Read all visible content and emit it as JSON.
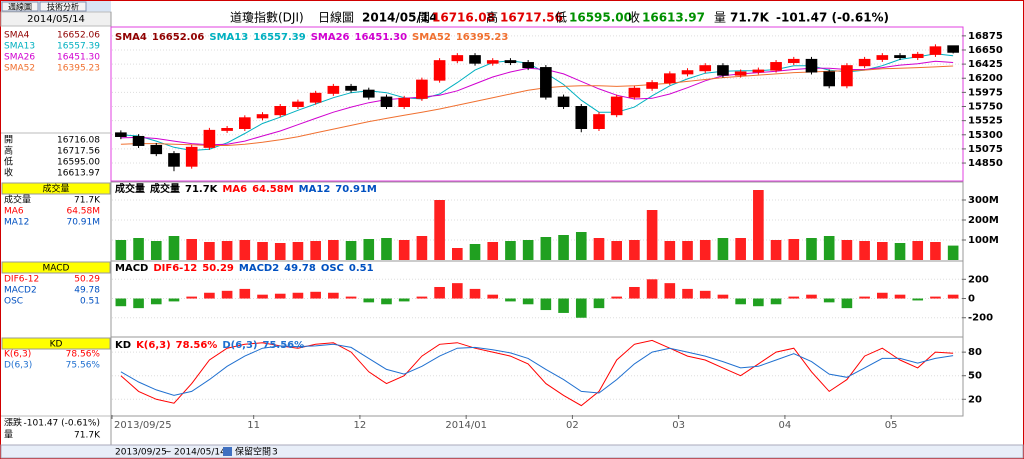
{
  "tabs": [
    "週線圖",
    "技術分析"
  ],
  "header": {
    "title": "道瓊指數(DJI)",
    "period": "日線圖",
    "date": "2014/05/14",
    "open_label": "開",
    "open": "16716.08",
    "high_label": "高",
    "high": "16717.56",
    "low_label": "低",
    "low": "16595.00",
    "close_label": "收",
    "close": "16613.97",
    "volume_label": "量",
    "volume": "71.7K",
    "change_label": "漲跌",
    "change": "-101.47 (-0.61%)"
  },
  "toolbar": {
    "from": "2013/09/25",
    "sep": "~",
    "to": "2014/05/14",
    "space": "保留空間",
    "count": "3"
  },
  "chart_data": [
    {
      "type": "candlestick",
      "up_color": "#ff0000",
      "down_color": "#000000",
      "categories": [
        "2013/09/25",
        null,
        null,
        null,
        null,
        null,
        null,
        null,
        "11",
        null,
        null,
        null,
        null,
        null,
        "12",
        null,
        null,
        null,
        null,
        null,
        "2014/01",
        null,
        null,
        null,
        null,
        null,
        "02",
        null,
        null,
        null,
        null,
        null,
        "03",
        null,
        null,
        null,
        null,
        null,
        "04",
        null,
        null,
        null,
        null,
        null,
        "05",
        null,
        null,
        null
      ],
      "open": [
        15330,
        15273,
        15130,
        15000,
        14800,
        15100,
        15370,
        15400,
        15570,
        15620,
        15750,
        15820,
        15960,
        16070,
        16010,
        15900,
        15750,
        15880,
        16170,
        16480,
        16560,
        16440,
        16480,
        16450,
        16370,
        15900,
        15750,
        15400,
        15620,
        15900,
        16040,
        16130,
        16270,
        16320,
        16400,
        16250,
        16300,
        16330,
        16450,
        16500,
        16300,
        16080,
        16400,
        16500,
        16560,
        16530,
        16580,
        16716.08
      ],
      "high": [
        15370,
        15310,
        15170,
        15040,
        15140,
        15410,
        15440,
        15610,
        15660,
        15790,
        15860,
        16000,
        16110,
        16110,
        16050,
        15940,
        15920,
        16210,
        16520,
        16600,
        16600,
        16520,
        16520,
        16490,
        16410,
        15940,
        15790,
        15660,
        15940,
        16080,
        16170,
        16310,
        16360,
        16440,
        16440,
        16340,
        16370,
        16490,
        16540,
        16540,
        16340,
        16440,
        16540,
        16600,
        16600,
        16620,
        16740,
        16717.56
      ],
      "low": [
        15230,
        15090,
        14960,
        14720,
        14760,
        15060,
        15330,
        15360,
        15530,
        15580,
        15710,
        15780,
        15920,
        15970,
        15860,
        15710,
        15710,
        15840,
        16130,
        16440,
        16400,
        16400,
        16410,
        16330,
        15860,
        15710,
        15340,
        15360,
        15580,
        15860,
        16000,
        16090,
        16230,
        16280,
        16210,
        16210,
        16260,
        16290,
        16410,
        16260,
        16040,
        16040,
        16360,
        16460,
        16490,
        16490,
        16540,
        16595.0
      ],
      "close": [
        15273,
        15130,
        15000,
        14800,
        15100,
        15370,
        15400,
        15570,
        15620,
        15750,
        15820,
        15960,
        16070,
        16010,
        15900,
        15750,
        15880,
        16170,
        16480,
        16560,
        16440,
        16480,
        16450,
        16370,
        15900,
        15750,
        15400,
        15620,
        15900,
        16040,
        16130,
        16270,
        16320,
        16400,
        16250,
        16300,
        16330,
        16450,
        16500,
        16300,
        16080,
        16400,
        16500,
        16560,
        16530,
        16580,
        16700,
        16613.97
      ],
      "ylim": [
        14580,
        17000
      ],
      "yticks": [
        16875,
        16650,
        16425,
        16200,
        15975,
        15750,
        15525,
        15300,
        15075,
        14850
      ],
      "series": [
        {
          "name": "SMA4",
          "legend_value": "16652.06",
          "color": "#900000"
        },
        {
          "name": "SMA13",
          "legend_value": "16557.39",
          "color": "#00b0c0",
          "values": [
            15300,
            15280,
            15200,
            15100,
            15050,
            15070,
            15170,
            15320,
            15480,
            15580,
            15690,
            15790,
            15890,
            15970,
            16000,
            15970,
            15890,
            15870,
            15950,
            16130,
            16330,
            16450,
            16480,
            16440,
            16280,
            16100,
            15850,
            15660,
            15660,
            15740,
            15920,
            16080,
            16190,
            16280,
            16310,
            16320,
            16320,
            16340,
            16400,
            16400,
            16330,
            16300,
            16330,
            16400,
            16500,
            16540,
            16590,
            16557.39
          ]
        },
        {
          "name": "SMA26",
          "legend_value": "16451.30",
          "color": "#d000d0",
          "values": [
            15250,
            15260,
            15240,
            15200,
            15160,
            15140,
            15150,
            15200,
            15280,
            15360,
            15460,
            15560,
            15660,
            15740,
            15810,
            15860,
            15880,
            15900,
            15930,
            16000,
            16110,
            16220,
            16300,
            16360,
            16340,
            16270,
            16150,
            16030,
            15930,
            15870,
            15880,
            15950,
            16050,
            16160,
            16240,
            16270,
            16290,
            16310,
            16340,
            16360,
            16360,
            16340,
            16340,
            16370,
            16410,
            16430,
            16470,
            16451.3
          ]
        },
        {
          "name": "SMA52",
          "legend_value": "16395.23",
          "color": "#f07030",
          "values": [
            15150,
            15160,
            15160,
            15150,
            15140,
            15130,
            15130,
            15150,
            15180,
            15220,
            15270,
            15330,
            15390,
            15450,
            15510,
            15560,
            15610,
            15660,
            15710,
            15770,
            15830,
            15890,
            15950,
            16010,
            16050,
            16070,
            16080,
            16080,
            16070,
            16080,
            16100,
            16120,
            16150,
            16180,
            16210,
            16230,
            16250,
            16270,
            16290,
            16300,
            16310,
            16320,
            16330,
            16350,
            16360,
            16370,
            16380,
            16395.23
          ]
        }
      ]
    },
    {
      "type": "bar",
      "title": "成交量",
      "up_color": "#ff2020",
      "down_color": "#20a020",
      "legend": [
        {
          "name": "成交量",
          "legend_value": "71.7K",
          "color": "#000000"
        },
        {
          "name": "MA6",
          "legend_value": "64.58M",
          "color": "#ff0000"
        },
        {
          "name": "MA12",
          "legend_value": "70.91M",
          "color": "#0050c0"
        }
      ],
      "values": [
        100,
        110,
        95,
        120,
        105,
        90,
        95,
        100,
        90,
        85,
        90,
        95,
        100,
        95,
        105,
        110,
        100,
        120,
        300,
        60,
        80,
        90,
        95,
        100,
        115,
        125,
        140,
        110,
        95,
        100,
        250,
        95,
        95,
        100,
        110,
        110,
        350,
        100,
        105,
        110,
        120,
        100,
        95,
        90,
        85,
        95,
        90,
        72
      ],
      "ylim": [
        0,
        385
      ],
      "yticks": [
        {
          "value": 300,
          "label": "300M"
        },
        {
          "value": 200,
          "label": "200M"
        },
        {
          "value": 100,
          "label": "100M"
        }
      ]
    },
    {
      "type": "bar",
      "title": "MACD",
      "pos_color": "#ff2020",
      "neg_color": "#20a020",
      "legend": [
        {
          "name": "DIF6-12",
          "legend_value": "50.29",
          "color": "#ff0000"
        },
        {
          "name": "MACD2",
          "legend_value": "49.78",
          "color": "#0050c0"
        },
        {
          "name": "OSC",
          "legend_value": "0.51",
          "color": "#0050c0"
        }
      ],
      "values": [
        -80,
        -100,
        -60,
        -30,
        20,
        60,
        80,
        100,
        40,
        50,
        60,
        70,
        60,
        20,
        -40,
        -60,
        -30,
        20,
        120,
        160,
        100,
        40,
        -30,
        -60,
        -120,
        -150,
        -200,
        -100,
        20,
        120,
        200,
        160,
        100,
        80,
        40,
        -60,
        -80,
        -60,
        20,
        40,
        -40,
        -100,
        20,
        60,
        40,
        -20,
        20,
        40
      ],
      "ylim": [
        -390,
        380
      ],
      "yticks": [
        200,
        0,
        -200
      ]
    },
    {
      "type": "line",
      "title": "KD",
      "series": [
        {
          "name": "K(6,3)",
          "legend_value": "78.56%",
          "color": "#ff0000",
          "values": [
            50,
            30,
            20,
            15,
            40,
            70,
            85,
            90,
            92,
            88,
            85,
            90,
            92,
            80,
            55,
            40,
            50,
            75,
            90,
            92,
            85,
            80,
            75,
            65,
            40,
            25,
            12,
            30,
            70,
            90,
            95,
            85,
            75,
            70,
            60,
            50,
            65,
            80,
            85,
            55,
            30,
            45,
            75,
            85,
            70,
            60,
            80,
            78.56
          ]
        },
        {
          "name": "D(6,3)",
          "legend_value": "75.56%",
          "color": "#2070d0",
          "values": [
            55,
            42,
            32,
            25,
            30,
            45,
            62,
            75,
            85,
            88,
            87,
            88,
            90,
            86,
            72,
            58,
            52,
            62,
            75,
            85,
            86,
            83,
            79,
            72,
            58,
            45,
            30,
            28,
            45,
            65,
            80,
            85,
            80,
            75,
            68,
            60,
            62,
            70,
            78,
            68,
            52,
            48,
            60,
            72,
            72,
            66,
            72,
            75.56
          ]
        }
      ],
      "ylim": [
        0,
        98
      ],
      "yticks": [
        80,
        50,
        20
      ]
    }
  ]
}
